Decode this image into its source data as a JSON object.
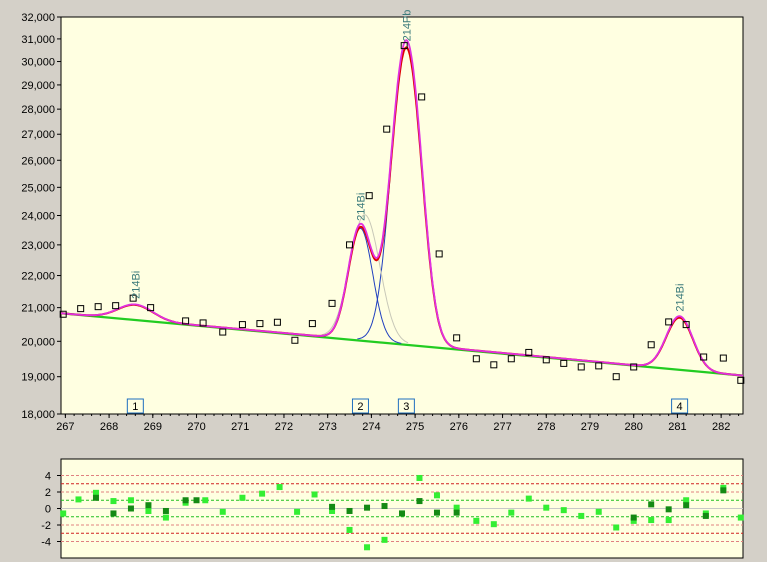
{
  "chart_data": [
    {
      "type": "line",
      "title": "",
      "xlabel": "",
      "ylabel": "",
      "xlim": [
        266.9,
        282.5
      ],
      "ylim": [
        18000,
        32000
      ],
      "y_scale": "log",
      "xticks": [
        267,
        268,
        269,
        270,
        271,
        272,
        273,
        274,
        275,
        276,
        277,
        278,
        279,
        280,
        281,
        282
      ],
      "yticks": [
        18000,
        19000,
        20000,
        21000,
        22000,
        23000,
        24000,
        25000,
        26000,
        27000,
        28000,
        29000,
        30000,
        31000,
        32000
      ],
      "ytick_labels": [
        "18,000",
        "19,000",
        "20,000",
        "21,000",
        "22,000",
        "23,000",
        "24,000",
        "25,000",
        "26,000",
        "27,000",
        "28,000",
        "29,000",
        "30,000",
        "31,000",
        "32,000"
      ],
      "background": "#ffffe1",
      "baseline": {
        "x": [
          266.9,
          282.5
        ],
        "y": [
          20830,
          19030
        ],
        "color": "#22cc22"
      },
      "peaks": [
        {
          "center": 268.6,
          "height": 450,
          "sigma": 0.4,
          "label": "214Bi",
          "marker": "1"
        },
        {
          "center": 273.75,
          "height": 3520,
          "sigma": 0.27,
          "label": "214Bi",
          "marker": "2"
        },
        {
          "center": 274.8,
          "height": 10700,
          "sigma": 0.32,
          "label": "214Pb",
          "marker": "3"
        },
        {
          "center": 281.05,
          "height": 1500,
          "sigma": 0.3,
          "label": "214Bi",
          "marker": "4"
        }
      ],
      "peak_curve_color": "#1f3fbf",
      "sum_curve_color": "#dd0000",
      "fit_curve_color": "#e030e0",
      "counts": {
        "x": [
          266.95,
          267.35,
          267.75,
          268.15,
          268.55,
          268.95,
          269.75,
          270.15,
          270.6,
          271.05,
          271.45,
          271.85,
          272.25,
          272.65,
          273.1,
          273.5,
          273.95,
          274.35,
          274.75,
          275.15,
          275.55,
          275.95,
          276.4,
          276.8,
          277.2,
          277.6,
          278.0,
          278.4,
          278.8,
          279.2,
          279.6,
          280.0,
          280.4,
          280.8,
          281.2,
          281.6,
          282.05,
          282.45
        ],
        "y": [
          20800,
          20970,
          21030,
          21060,
          21290,
          21000,
          20600,
          20540,
          20270,
          20490,
          20520,
          20560,
          20030,
          20520,
          21130,
          23000,
          24700,
          27200,
          30700,
          28500,
          22700,
          20100,
          19500,
          19330,
          19500,
          19680,
          19470,
          19370,
          19270,
          19300,
          19000,
          19270,
          19900,
          20570,
          20490,
          19550,
          19520,
          18900
        ]
      },
      "marker_color": "#1f6fbf"
    },
    {
      "type": "scatter",
      "title": "",
      "xlim": [
        266.9,
        282.5
      ],
      "ylim": [
        -6,
        6
      ],
      "yticks": [
        -4,
        -2,
        0,
        2,
        4
      ],
      "ytick_labels": [
        "-4",
        "-2",
        "0",
        "2",
        "4"
      ],
      "grid_lines": [
        {
          "y": 4,
          "color": "#e08080"
        },
        {
          "y": 3,
          "color": "#d02020"
        },
        {
          "y": 1,
          "color": "#20c020"
        },
        {
          "y": -1,
          "color": "#20c020"
        },
        {
          "y": -3,
          "color": "#d02020"
        },
        {
          "y": -4,
          "color": "#e08080"
        },
        {
          "y": 2,
          "color": "#e08080"
        },
        {
          "y": -2,
          "color": "#e08080"
        }
      ],
      "series": [
        {
          "color": "#33ee33",
          "points": [
            [
              266.95,
              -0.6
            ],
            [
              267.3,
              1.1
            ],
            [
              267.7,
              1.9
            ],
            [
              268.1,
              0.9
            ],
            [
              268.5,
              1.0
            ],
            [
              268.9,
              -0.3
            ],
            [
              269.3,
              -1.1
            ],
            [
              269.75,
              0.7
            ],
            [
              270.2,
              1.0
            ],
            [
              270.6,
              -0.4
            ],
            [
              271.05,
              1.3
            ],
            [
              271.5,
              1.8
            ],
            [
              271.9,
              2.6
            ],
            [
              272.3,
              -0.4
            ],
            [
              272.7,
              1.7
            ],
            [
              273.1,
              -0.3
            ],
            [
              273.5,
              -2.6
            ],
            [
              273.9,
              -4.7
            ],
            [
              274.3,
              -3.8
            ],
            [
              274.7,
              -0.6
            ],
            [
              275.1,
              3.7
            ],
            [
              275.5,
              1.6
            ],
            [
              275.95,
              0.1
            ],
            [
              276.4,
              -1.5
            ],
            [
              276.8,
              -1.9
            ],
            [
              277.2,
              -0.5
            ],
            [
              277.6,
              1.2
            ],
            [
              278.0,
              0.1
            ],
            [
              278.4,
              -0.2
            ],
            [
              278.8,
              -0.9
            ],
            [
              279.2,
              -0.4
            ],
            [
              279.6,
              -2.3
            ],
            [
              280.0,
              -1.5
            ],
            [
              280.4,
              -1.4
            ],
            [
              280.8,
              -1.4
            ],
            [
              281.2,
              1.0
            ],
            [
              281.65,
              -0.6
            ],
            [
              282.05,
              2.5
            ],
            [
              282.45,
              -1.1
            ]
          ]
        },
        {
          "color": "#148a14",
          "points": [
            [
              267.7,
              1.3
            ],
            [
              268.1,
              -0.6
            ],
            [
              268.5,
              0.0
            ],
            [
              268.9,
              0.4
            ],
            [
              269.3,
              -0.3
            ],
            [
              269.75,
              1.0
            ],
            [
              270.0,
              1.0
            ],
            [
              273.1,
              0.2
            ],
            [
              273.5,
              -0.3
            ],
            [
              273.9,
              0.1
            ],
            [
              274.3,
              0.3
            ],
            [
              274.7,
              -0.6
            ],
            [
              275.1,
              0.9
            ],
            [
              275.5,
              -0.5
            ],
            [
              275.95,
              -0.5
            ],
            [
              280.0,
              -1.1
            ],
            [
              280.4,
              0.5
            ],
            [
              280.8,
              -0.1
            ],
            [
              281.2,
              0.4
            ],
            [
              281.65,
              -0.9
            ],
            [
              282.05,
              2.2
            ]
          ]
        }
      ]
    }
  ]
}
